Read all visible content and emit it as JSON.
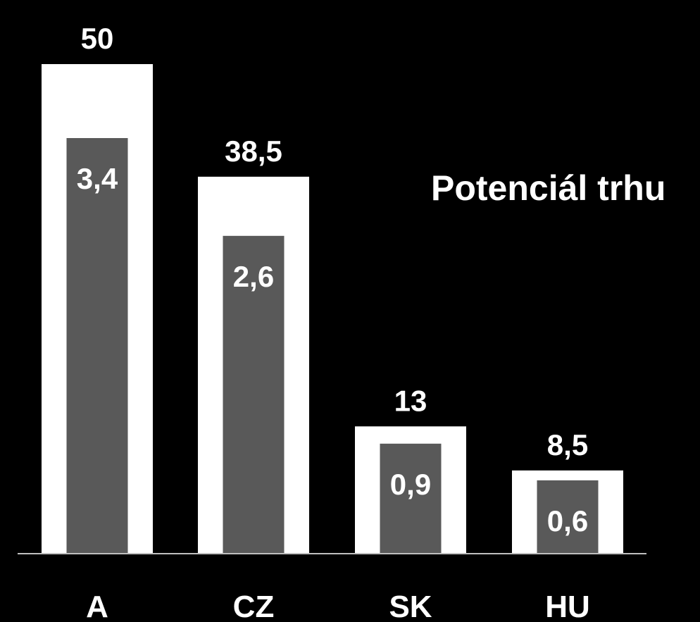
{
  "chart_data": {
    "type": "bar",
    "categories": [
      "A",
      "CZ",
      "SK",
      "HU"
    ],
    "series": [
      {
        "values": [
          50,
          38.5,
          13,
          8.5
        ],
        "value_labels": [
          "50",
          "38,5",
          "13",
          "8,5"
        ],
        "color": "#ffffff"
      },
      {
        "values": [
          3.4,
          2.6,
          0.9,
          0.6
        ],
        "value_labels": [
          "3,4",
          "2,6",
          "0,9",
          "0,6"
        ],
        "color": "#595959"
      }
    ],
    "title": "",
    "annotation": "Potenciál trhu",
    "xlabel": "",
    "ylabel": "",
    "grid": false,
    "legend": "none",
    "colors": {
      "background": "#000000",
      "text": "#ffffff",
      "axis": "#bfbfbf"
    }
  }
}
